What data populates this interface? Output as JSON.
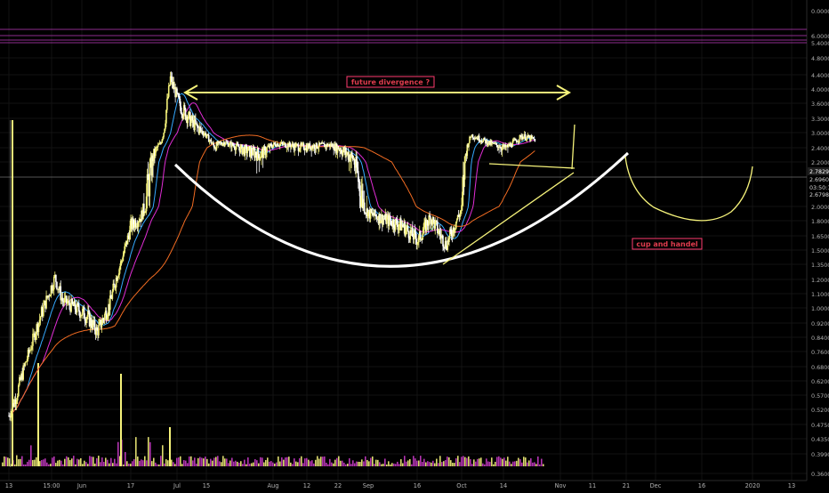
{
  "chart_data": {
    "type": "candlestick",
    "title": "",
    "xlabel": "",
    "ylabel": "",
    "y_scale": "log",
    "ylim": [
      0.3599,
      9.0
    ],
    "y_ticks": [
      "0.0000",
      "6.0000",
      "5.4000",
      "4.8000",
      "4.4000",
      "4.0000",
      "3.6000",
      "3.3000",
      "3.0000",
      "2.4000",
      "2.2000",
      "2.0000",
      "1.8000",
      "1.6500",
      "1.5000",
      "1.3500",
      "1.2000",
      "1.1000",
      "1.0000",
      "0.9200",
      "0.8400",
      "0.7600",
      "0.6800",
      "0.6200",
      "0.5700",
      "0.5200",
      "0.4750",
      "0.4350",
      "0.3990",
      "0.3600"
    ],
    "x_ticks": [
      "13",
      "15:00",
      "Jun",
      "17",
      "Jul",
      "15",
      "Aug",
      "12",
      "22",
      "Sep",
      "16",
      "Oct",
      "14",
      "Nov",
      "11",
      "21",
      "Dec",
      "16",
      "2020",
      "13"
    ],
    "price_labels": [
      {
        "text": "2.7829",
        "color": "#ffffff",
        "bg": "#1e1e1e"
      },
      {
        "text": "2.6960",
        "color": "#d8d8d8",
        "bg": "#000000"
      },
      {
        "text": "03:50:16",
        "color": "#d8d8d8",
        "bg": "#000000"
      },
      {
        "text": "2.6798",
        "color": "#d8d8d8",
        "bg": "#000000"
      }
    ],
    "annotations": [
      {
        "text": "future divergence ?",
        "color": "#e03c4e",
        "bg": "#ff3d71"
      },
      {
        "text": "cup and handel",
        "color": "#e03c4e",
        "bg": "#ff3d71"
      }
    ],
    "price_waypoints": [
      {
        "x": "May 13",
        "y": 0.5
      },
      {
        "x": "May 15",
        "y": 0.57
      },
      {
        "x": "May 20",
        "y": 0.88
      },
      {
        "x": "May 25",
        "y": 1.22
      },
      {
        "x": "May 27",
        "y": 1.05
      },
      {
        "x": "Jun 3",
        "y": 0.95
      },
      {
        "x": "Jun 6",
        "y": 0.87
      },
      {
        "x": "Jun 10",
        "y": 1.02
      },
      {
        "x": "Jun 17",
        "y": 1.75
      },
      {
        "x": "Jun 20",
        "y": 1.85
      },
      {
        "x": "Jun 26",
        "y": 2.55
      },
      {
        "x": "Jun 29",
        "y": 4.3
      },
      {
        "x": "Jul 2",
        "y": 3.55
      },
      {
        "x": "Jul 6",
        "y": 3.2
      },
      {
        "x": "Jul 10",
        "y": 2.95
      },
      {
        "x": "Jul 13",
        "y": 2.45
      },
      {
        "x": "Jul 16",
        "y": 2.6
      },
      {
        "x": "Jul 22",
        "y": 2.4
      },
      {
        "x": "Jul 28",
        "y": 2.3
      },
      {
        "x": "Aug 2",
        "y": 2.55
      },
      {
        "x": "Aug 10",
        "y": 2.45
      },
      {
        "x": "Aug 20",
        "y": 2.5
      },
      {
        "x": "Aug 27",
        "y": 2.25
      },
      {
        "x": "Sep 1",
        "y": 1.9
      },
      {
        "x": "Sep 8",
        "y": 1.8
      },
      {
        "x": "Sep 12",
        "y": 1.75
      },
      {
        "x": "Sep 17",
        "y": 1.6
      },
      {
        "x": "Sep 21",
        "y": 1.85
      },
      {
        "x": "Sep 26",
        "y": 1.55
      },
      {
        "x": "Oct 1",
        "y": 1.95
      },
      {
        "x": "Oct 4",
        "y": 2.9
      },
      {
        "x": "Oct 10",
        "y": 2.55
      },
      {
        "x": "Oct 15",
        "y": 2.4
      },
      {
        "x": "Oct 20",
        "y": 2.85
      },
      {
        "x": "Oct 24",
        "y": 2.7
      }
    ]
  }
}
